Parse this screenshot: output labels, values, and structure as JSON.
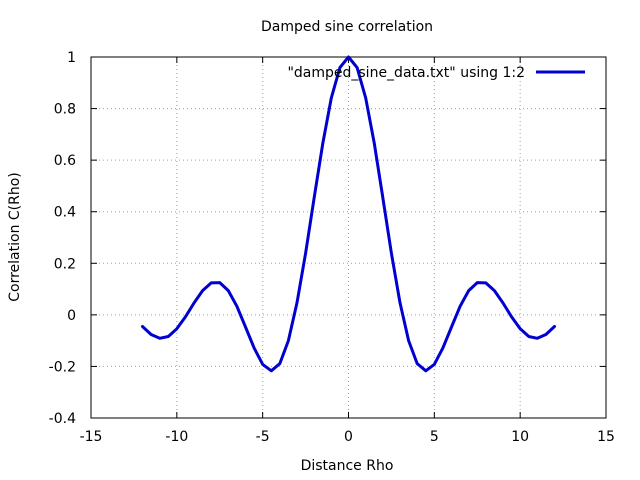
{
  "chart_data": {
    "type": "line",
    "title": "Damped sine correlation",
    "xlabel": "Distance Rho",
    "ylabel": "Correlation C(Rho)",
    "xlim": [
      -15,
      15
    ],
    "ylim": [
      -0.4,
      1
    ],
    "xticks": [
      -15,
      -10,
      -5,
      0,
      5,
      10,
      15
    ],
    "yticks": [
      -0.4,
      -0.2,
      0,
      0.2,
      0.4,
      0.6,
      0.8,
      1
    ],
    "xtick_labels": [
      "-15",
      "-10",
      "-5",
      "0",
      "5",
      "10",
      "15"
    ],
    "ytick_labels": [
      "-0.4",
      "-0.2",
      "0",
      "0.2",
      "0.4",
      "0.6",
      "0.8",
      "1"
    ],
    "grid": true,
    "legend_position": "top-right",
    "series": [
      {
        "name": "\"damped_sine_data.txt\" using 1:2",
        "color": "#0000d0",
        "x": [
          -12.0,
          -11.5,
          -11.0,
          -10.5,
          -10.0,
          -9.5,
          -9.0,
          -8.5,
          -8.0,
          -7.5,
          -7.0,
          -6.5,
          -6.0,
          -5.5,
          -5.0,
          -4.5,
          -4.0,
          -3.5,
          -3.0,
          -2.5,
          -2.0,
          -1.5,
          -1.0,
          -0.5,
          0.0,
          0.5,
          1.0,
          1.5,
          2.0,
          2.5,
          3.0,
          3.5,
          4.0,
          4.5,
          5.0,
          5.5,
          6.0,
          6.5,
          7.0,
          7.5,
          8.0,
          8.5,
          9.0,
          9.5,
          10.0,
          10.5,
          11.0,
          11.5,
          12.0
        ],
        "y": [
          -0.045,
          -0.076,
          -0.091,
          -0.084,
          -0.054,
          -0.008,
          0.046,
          0.094,
          0.124,
          0.125,
          0.094,
          0.033,
          -0.047,
          -0.128,
          -0.192,
          -0.217,
          -0.189,
          -0.1,
          0.047,
          0.239,
          0.455,
          0.665,
          0.841,
          0.959,
          1.0,
          0.959,
          0.841,
          0.665,
          0.455,
          0.239,
          0.047,
          -0.1,
          -0.189,
          -0.217,
          -0.192,
          -0.128,
          -0.047,
          0.033,
          0.094,
          0.125,
          0.124,
          0.094,
          0.046,
          -0.008,
          -0.054,
          -0.084,
          -0.091,
          -0.076,
          -0.045
        ]
      }
    ]
  }
}
